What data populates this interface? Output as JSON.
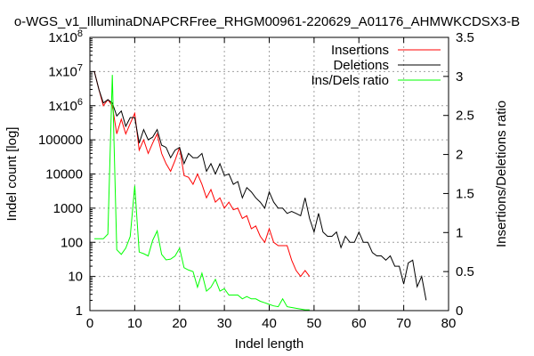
{
  "chart_data": {
    "type": "line",
    "title": "o-WGS_v1_IlluminaDNAPCRFree_RHGM00961-220629_A01176_AHMWKCDSX3-B",
    "xlabel": "Indel length",
    "ylabel": "Indel count [log]",
    "y2label": "Insertions/Deletions ratio",
    "xlim": [
      0,
      80
    ],
    "ylim": [
      1,
      100000000
    ],
    "y2lim": [
      0,
      3.5
    ],
    "yscale": "log",
    "grid": true,
    "legend_position": "top-right",
    "x_ticks": [
      0,
      10,
      20,
      30,
      40,
      50,
      60,
      70,
      80
    ],
    "y_ticks": [
      {
        "value": 1,
        "label": "1"
      },
      {
        "value": 10,
        "label": "10"
      },
      {
        "value": 100,
        "label": "100"
      },
      {
        "value": 1000,
        "label": "1000"
      },
      {
        "value": 10000,
        "label": "10000"
      },
      {
        "value": 100000,
        "label": "100000"
      },
      {
        "value": 1000000,
        "label": "1x10^6"
      },
      {
        "value": 10000000,
        "label": "1x10^7"
      },
      {
        "value": 100000000,
        "label": "1x10^8"
      }
    ],
    "y2_ticks": [
      0,
      0.5,
      1,
      1.5,
      2,
      2.5,
      3,
      3.5
    ],
    "series": [
      {
        "name": "Insertions",
        "color": "#ff0000",
        "axis": "y",
        "x": [
          1,
          2,
          3,
          4,
          5,
          6,
          7,
          8,
          9,
          10,
          11,
          12,
          13,
          14,
          15,
          16,
          17,
          18,
          19,
          20,
          21,
          22,
          23,
          24,
          25,
          26,
          27,
          28,
          29,
          30,
          31,
          32,
          33,
          34,
          35,
          36,
          37,
          38,
          39,
          40,
          41,
          42,
          43,
          44,
          45,
          46,
          47,
          48,
          49
        ],
        "y": [
          10000000,
          3000000,
          1000000,
          1500000,
          1000000,
          150000,
          400000,
          150000,
          300000,
          600000,
          50000,
          100000,
          40000,
          80000,
          150000,
          40000,
          20000,
          12000,
          25000,
          60000,
          9000,
          8000,
          5000,
          10000,
          5000,
          2000,
          3500,
          1500,
          2000,
          1000,
          1500,
          900,
          1000,
          500,
          600,
          250,
          300,
          150,
          100,
          250,
          100,
          80,
          80,
          80,
          30,
          15,
          10,
          15,
          10
        ]
      },
      {
        "name": "Deletions",
        "color": "#000000",
        "axis": "y",
        "x": [
          1,
          2,
          3,
          4,
          5,
          6,
          7,
          8,
          9,
          10,
          11,
          12,
          13,
          14,
          15,
          16,
          17,
          18,
          19,
          20,
          21,
          22,
          23,
          24,
          25,
          26,
          27,
          28,
          29,
          30,
          31,
          32,
          33,
          34,
          35,
          36,
          37,
          38,
          39,
          40,
          41,
          42,
          43,
          44,
          45,
          46,
          47,
          48,
          49,
          50,
          51,
          52,
          53,
          54,
          55,
          56,
          57,
          58,
          59,
          60,
          61,
          62,
          63,
          64,
          65,
          66,
          67,
          68,
          69,
          70,
          71,
          72,
          73,
          74,
          75
        ],
        "y": [
          10000000,
          3000000,
          1200000,
          1500000,
          1200000,
          500000,
          700000,
          250000,
          450000,
          450000,
          80000,
          200000,
          100000,
          120000,
          200000,
          70000,
          60000,
          30000,
          50000,
          60000,
          20000,
          40000,
          30000,
          30000,
          40000,
          12000,
          20000,
          10000,
          20000,
          9000,
          10000,
          5000,
          6000,
          2000,
          4000,
          3000,
          2000,
          1500,
          1000,
          3000,
          1500,
          1000,
          1000,
          700,
          800,
          700,
          600,
          2000,
          500,
          200,
          700,
          200,
          150,
          150,
          200,
          70,
          150,
          100,
          100,
          200,
          100,
          100,
          50,
          40,
          40,
          30,
          40,
          20,
          20,
          6,
          25,
          30,
          5,
          10,
          2
        ]
      },
      {
        "name": "Ins/Dels ratio",
        "color": "#00ff00",
        "axis": "y2",
        "x": [
          1,
          2,
          3,
          4,
          5,
          6,
          7,
          8,
          9,
          10,
          11,
          12,
          13,
          14,
          15,
          16,
          17,
          18,
          19,
          20,
          21,
          22,
          23,
          24,
          25,
          26,
          27,
          28,
          29,
          30,
          31,
          32,
          33,
          34,
          35,
          36,
          37,
          38,
          39,
          40,
          41,
          42,
          43,
          44,
          45,
          46,
          47,
          48,
          49
        ],
        "y": [
          0.92,
          0.92,
          0.92,
          0.98,
          3.02,
          0.78,
          0.72,
          0.8,
          0.95,
          1.6,
          0.75,
          0.73,
          0.7,
          0.9,
          1.02,
          0.72,
          0.65,
          0.66,
          0.7,
          0.8,
          0.55,
          0.52,
          0.5,
          0.3,
          0.48,
          0.25,
          0.3,
          0.4,
          0.25,
          0.28,
          0.2,
          0.2,
          0.2,
          0.15,
          0.18,
          0.15,
          0.15,
          0.12,
          0.1,
          0.08,
          0.06,
          0.05,
          0.15,
          0.05,
          0.04,
          0.03,
          0.02,
          0.01,
          0.01
        ]
      }
    ]
  }
}
